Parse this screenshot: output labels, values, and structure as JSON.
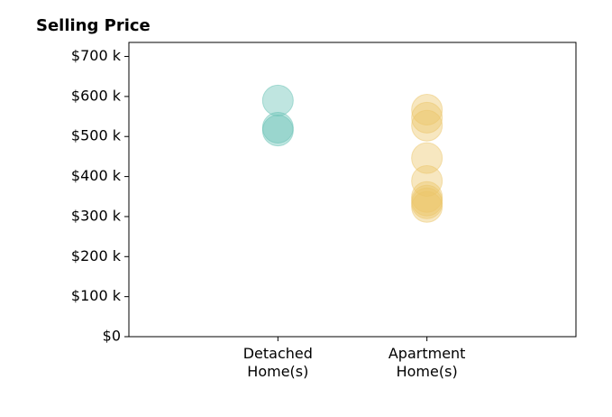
{
  "chart_data": {
    "type": "strip",
    "title": "Selling Price",
    "categories": [
      "Detached\nHome(s)",
      "Apartment\nHome(s)"
    ],
    "colors": [
      "#66c2b4",
      "#ebc66a"
    ],
    "values": [
      [
        590000,
        522000,
        515000
      ],
      [
        567000,
        547000,
        527000,
        446000,
        389000,
        349000,
        340000,
        333000,
        324000
      ]
    ],
    "xlim": [
      -1,
      2
    ],
    "ylim": [
      0,
      735000
    ],
    "yticks": [
      {
        "value": 0,
        "label": "$0"
      },
      {
        "value": 100000,
        "label": "$100 k"
      },
      {
        "value": 200000,
        "label": "$200 k"
      },
      {
        "value": 300000,
        "label": "$300 k"
      },
      {
        "value": 400000,
        "label": "$400 k"
      },
      {
        "value": 500000,
        "label": "$500 k"
      },
      {
        "value": 600000,
        "label": "$600 k"
      },
      {
        "value": 700000,
        "label": "$700 k"
      }
    ]
  }
}
